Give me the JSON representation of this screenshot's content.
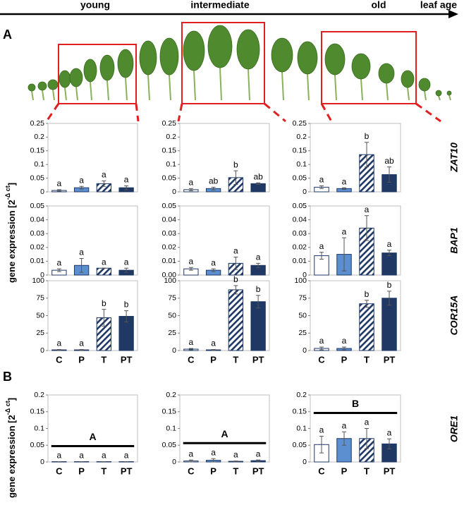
{
  "header": {
    "stages": [
      "young",
      "intermediate",
      "old",
      "leaf age"
    ],
    "panels": [
      "A",
      "B"
    ]
  },
  "y_labels": [
    {
      "base": "gene expression [2",
      "exponent": "-Δ ct",
      "close": "]"
    },
    {
      "base": "gene expression [2",
      "exponent": "-Δ ct",
      "close": "]"
    }
  ],
  "genes": [
    "ZAT10",
    "BAP1",
    "COR15A",
    "ORE1"
  ],
  "chart_data": [
    {
      "type": "bar",
      "categories": [
        null,
        null,
        null,
        null
      ],
      "values": [
        0.005,
        0.015,
        0.03,
        0.015
      ],
      "errors": [
        0.003,
        0.005,
        0.01,
        0.007
      ],
      "letters": [
        "a",
        "a",
        "a",
        "a"
      ],
      "colors": [
        "#ffffff",
        "#5b8fd0",
        "#1f3864",
        "#1f3864"
      ],
      "hatched": [
        false,
        false,
        true,
        false
      ],
      "ylim": [
        0,
        0.25
      ],
      "yticks": [
        0,
        0.05,
        0.1,
        0.15,
        0.2,
        0.25
      ]
    },
    {
      "type": "bar",
      "categories": [
        null,
        null,
        null,
        null
      ],
      "values": [
        0.008,
        0.012,
        0.052,
        0.03
      ],
      "errors": [
        0.004,
        0.005,
        0.025,
        0.003
      ],
      "letters": [
        "a",
        "ab",
        "b",
        "ab"
      ],
      "colors": [
        "#ffffff",
        "#5b8fd0",
        "#1f3864",
        "#1f3864"
      ],
      "hatched": [
        false,
        false,
        true,
        false
      ],
      "ylim": [
        0,
        0.25
      ],
      "yticks": [
        0,
        0.05,
        0.1,
        0.15,
        0.2,
        0.25
      ]
    },
    {
      "type": "bar",
      "categories": [
        null,
        null,
        null,
        null
      ],
      "values": [
        0.017,
        0.012,
        0.136,
        0.063
      ],
      "errors": [
        0.005,
        0.003,
        0.045,
        0.028
      ],
      "letters": [
        "a",
        "a",
        "b",
        "ab"
      ],
      "colors": [
        "#ffffff",
        "#5b8fd0",
        "#1f3864",
        "#1f3864"
      ],
      "hatched": [
        false,
        false,
        true,
        false
      ],
      "ylim": [
        0,
        0.25
      ],
      "yticks": [
        0,
        0.05,
        0.1,
        0.15,
        0.2,
        0.25
      ]
    },
    {
      "type": "bar",
      "categories": [
        null,
        null,
        null,
        null
      ],
      "values": [
        0.0035,
        0.007,
        0.005,
        0.0035
      ],
      "errors": [
        0.001,
        0.005,
        0,
        0.0015
      ],
      "letters": [
        "a",
        "a",
        "a",
        "a"
      ],
      "colors": [
        "#ffffff",
        "#5b8fd0",
        "#1f3864",
        "#1f3864"
      ],
      "hatched": [
        false,
        false,
        true,
        false
      ],
      "ylim": [
        0,
        0.05
      ],
      "yticks": [
        0,
        0.01,
        0.02,
        0.03,
        0.04,
        0.05
      ]
    },
    {
      "type": "bar",
      "categories": [
        null,
        null,
        null,
        null
      ],
      "values": [
        0.0045,
        0.0035,
        0.0085,
        0.007
      ],
      "errors": [
        0.001,
        0.001,
        0.0045,
        0.0015
      ],
      "letters": [
        "a",
        "a",
        "a",
        "a"
      ],
      "colors": [
        "#ffffff",
        "#5b8fd0",
        "#1f3864",
        "#1f3864"
      ],
      "hatched": [
        false,
        false,
        true,
        false
      ],
      "ylim": [
        0,
        0.05
      ],
      "yticks": [
        {
          "value": 0,
          "label": "0.00"
        },
        0.01,
        0.02,
        0.03,
        0.04,
        0.05
      ]
    },
    {
      "type": "bar",
      "categories": [
        null,
        null,
        null,
        null
      ],
      "values": [
        0.014,
        0.015,
        0.034,
        0.016
      ],
      "errors": [
        0.0025,
        0.012,
        0.009,
        0.002
      ],
      "letters": [
        "a",
        "a",
        "a",
        "a"
      ],
      "colors": [
        "#ffffff",
        "#5b8fd0",
        "#1f3864",
        "#1f3864"
      ],
      "hatched": [
        false,
        false,
        true,
        false
      ],
      "ylim": [
        0,
        0.05
      ],
      "yticks": [
        0,
        0.01,
        0.02,
        0.03,
        0.04,
        0.05
      ]
    },
    {
      "type": "bar",
      "categories": [
        "C",
        "P",
        "T",
        "PT"
      ],
      "values": [
        1,
        1,
        47,
        49
      ],
      "errors": [
        0.5,
        0.5,
        12,
        8
      ],
      "letters": [
        "a",
        "a",
        "b",
        "b"
      ],
      "colors": [
        "#ffffff",
        "#5b8fd0",
        "#1f3864",
        "#1f3864"
      ],
      "hatched": [
        false,
        false,
        true,
        false
      ],
      "ylim": [
        0,
        100
      ],
      "yticks": [
        0,
        25,
        50,
        75,
        100
      ]
    },
    {
      "type": "bar",
      "categories": [
        "C",
        "P",
        "T",
        "PT"
      ],
      "values": [
        2,
        1,
        87,
        70
      ],
      "errors": [
        1,
        0.5,
        6,
        9
      ],
      "letters": [
        "a",
        "a",
        "b",
        "b"
      ],
      "colors": [
        "#ffffff",
        "#5b8fd0",
        "#1f3864",
        "#1f3864"
      ],
      "hatched": [
        false,
        false,
        true,
        false
      ],
      "ylim": [
        0,
        100
      ],
      "yticks": [
        0,
        25,
        50,
        75,
        100
      ]
    },
    {
      "type": "bar",
      "categories": [
        "C",
        "P",
        "T",
        "PT"
      ],
      "values": [
        3,
        3,
        67,
        75
      ],
      "errors": [
        2,
        2,
        5,
        10
      ],
      "letters": [
        "a",
        "a",
        "b",
        "b"
      ],
      "colors": [
        "#ffffff",
        "#5b8fd0",
        "#1f3864",
        "#1f3864"
      ],
      "hatched": [
        false,
        false,
        true,
        false
      ],
      "ylim": [
        0,
        100
      ],
      "yticks": [
        0,
        25,
        50,
        75,
        100
      ]
    },
    {
      "type": "bar",
      "categories": [
        "C",
        "P",
        "T",
        "PT"
      ],
      "values": [
        0.001,
        0.001,
        0.001,
        0.001
      ],
      "errors": [
        0,
        0,
        0,
        0
      ],
      "letters": [
        "a",
        "a",
        "a",
        "a"
      ],
      "group_letter": "A",
      "colors": [
        "#ffffff",
        "#5b8fd0",
        "#1f3864",
        "#1f3864"
      ],
      "hatched": [
        false,
        false,
        true,
        false
      ],
      "ylim": [
        0,
        0.2
      ],
      "yticks": [
        0,
        0.05,
        0.1,
        0.15,
        0.2
      ]
    },
    {
      "type": "bar",
      "categories": [
        "C",
        "P",
        "T",
        "PT"
      ],
      "values": [
        0.003,
        0.005,
        0.002,
        0.004
      ],
      "errors": [
        0.003,
        0.005,
        0.001,
        0.002
      ],
      "letters": [
        "a",
        "a",
        "a",
        "a"
      ],
      "group_letter": "A",
      "colors": [
        "#ffffff",
        "#5b8fd0",
        "#1f3864",
        "#1f3864"
      ],
      "hatched": [
        false,
        false,
        true,
        false
      ],
      "ylim": [
        0,
        0.2
      ],
      "yticks": [
        0,
        0.05,
        0.1,
        0.15,
        0.2
      ]
    },
    {
      "type": "bar",
      "categories": [
        "C",
        "P",
        "T",
        "PT"
      ],
      "values": [
        0.052,
        0.07,
        0.07,
        0.054
      ],
      "errors": [
        0.025,
        0.02,
        0.03,
        0.015
      ],
      "letters": [
        "a",
        "a",
        "a",
        "a"
      ],
      "group_letter": "B",
      "colors": [
        "#ffffff",
        "#5b8fd0",
        "#1f3864",
        "#1f3864"
      ],
      "hatched": [
        false,
        false,
        true,
        false
      ],
      "ylim": [
        0,
        0.2
      ],
      "yticks": [
        0,
        0.05,
        0.1,
        0.15,
        0.2
      ]
    }
  ]
}
